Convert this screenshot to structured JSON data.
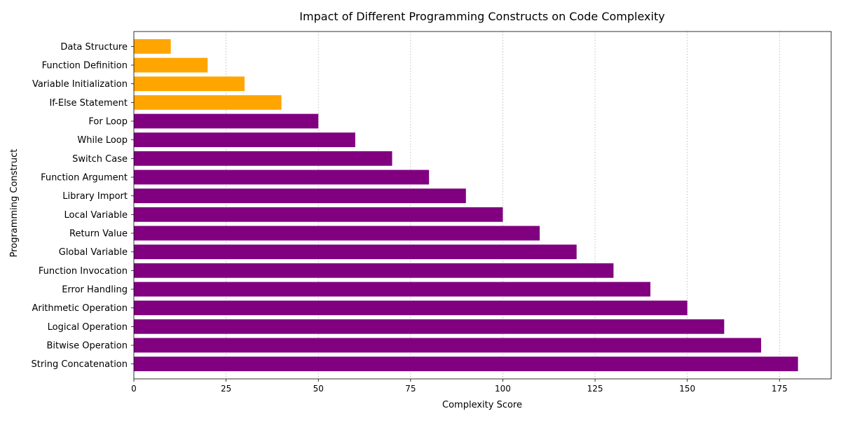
{
  "chart_data": {
    "type": "bar",
    "orientation": "horizontal",
    "title": "Impact of Different Programming Constructs on Code Complexity",
    "xlabel": "Complexity Score",
    "ylabel": "Programming Construct",
    "xlim": [
      0,
      189
    ],
    "xticks": [
      0,
      25,
      50,
      75,
      100,
      125,
      150,
      175
    ],
    "xtick_labels": [
      "0",
      "25",
      "50",
      "75",
      "100",
      "125",
      "150",
      "175"
    ],
    "grid": "x-axis dotted",
    "categories": [
      "String Concatenation",
      "Bitwise Operation",
      "Logical Operation",
      "Arithmetic Operation",
      "Error Handling",
      "Function Invocation",
      "Global Variable",
      "Return Value",
      "Local Variable",
      "Library Import",
      "Function Argument",
      "Switch Case",
      "While Loop",
      "For Loop",
      "If-Else Statement",
      "Variable Initialization",
      "Function Definition",
      "Data Structure"
    ],
    "values": [
      180,
      170,
      160,
      150,
      140,
      130,
      120,
      110,
      100,
      90,
      80,
      70,
      60,
      50,
      40,
      30,
      20,
      10
    ],
    "bar_colors": [
      "#800080",
      "#800080",
      "#800080",
      "#800080",
      "#800080",
      "#800080",
      "#800080",
      "#800080",
      "#800080",
      "#800080",
      "#800080",
      "#800080",
      "#800080",
      "#800080",
      "#FFA500",
      "#FFA500",
      "#FFA500",
      "#FFA500"
    ]
  }
}
